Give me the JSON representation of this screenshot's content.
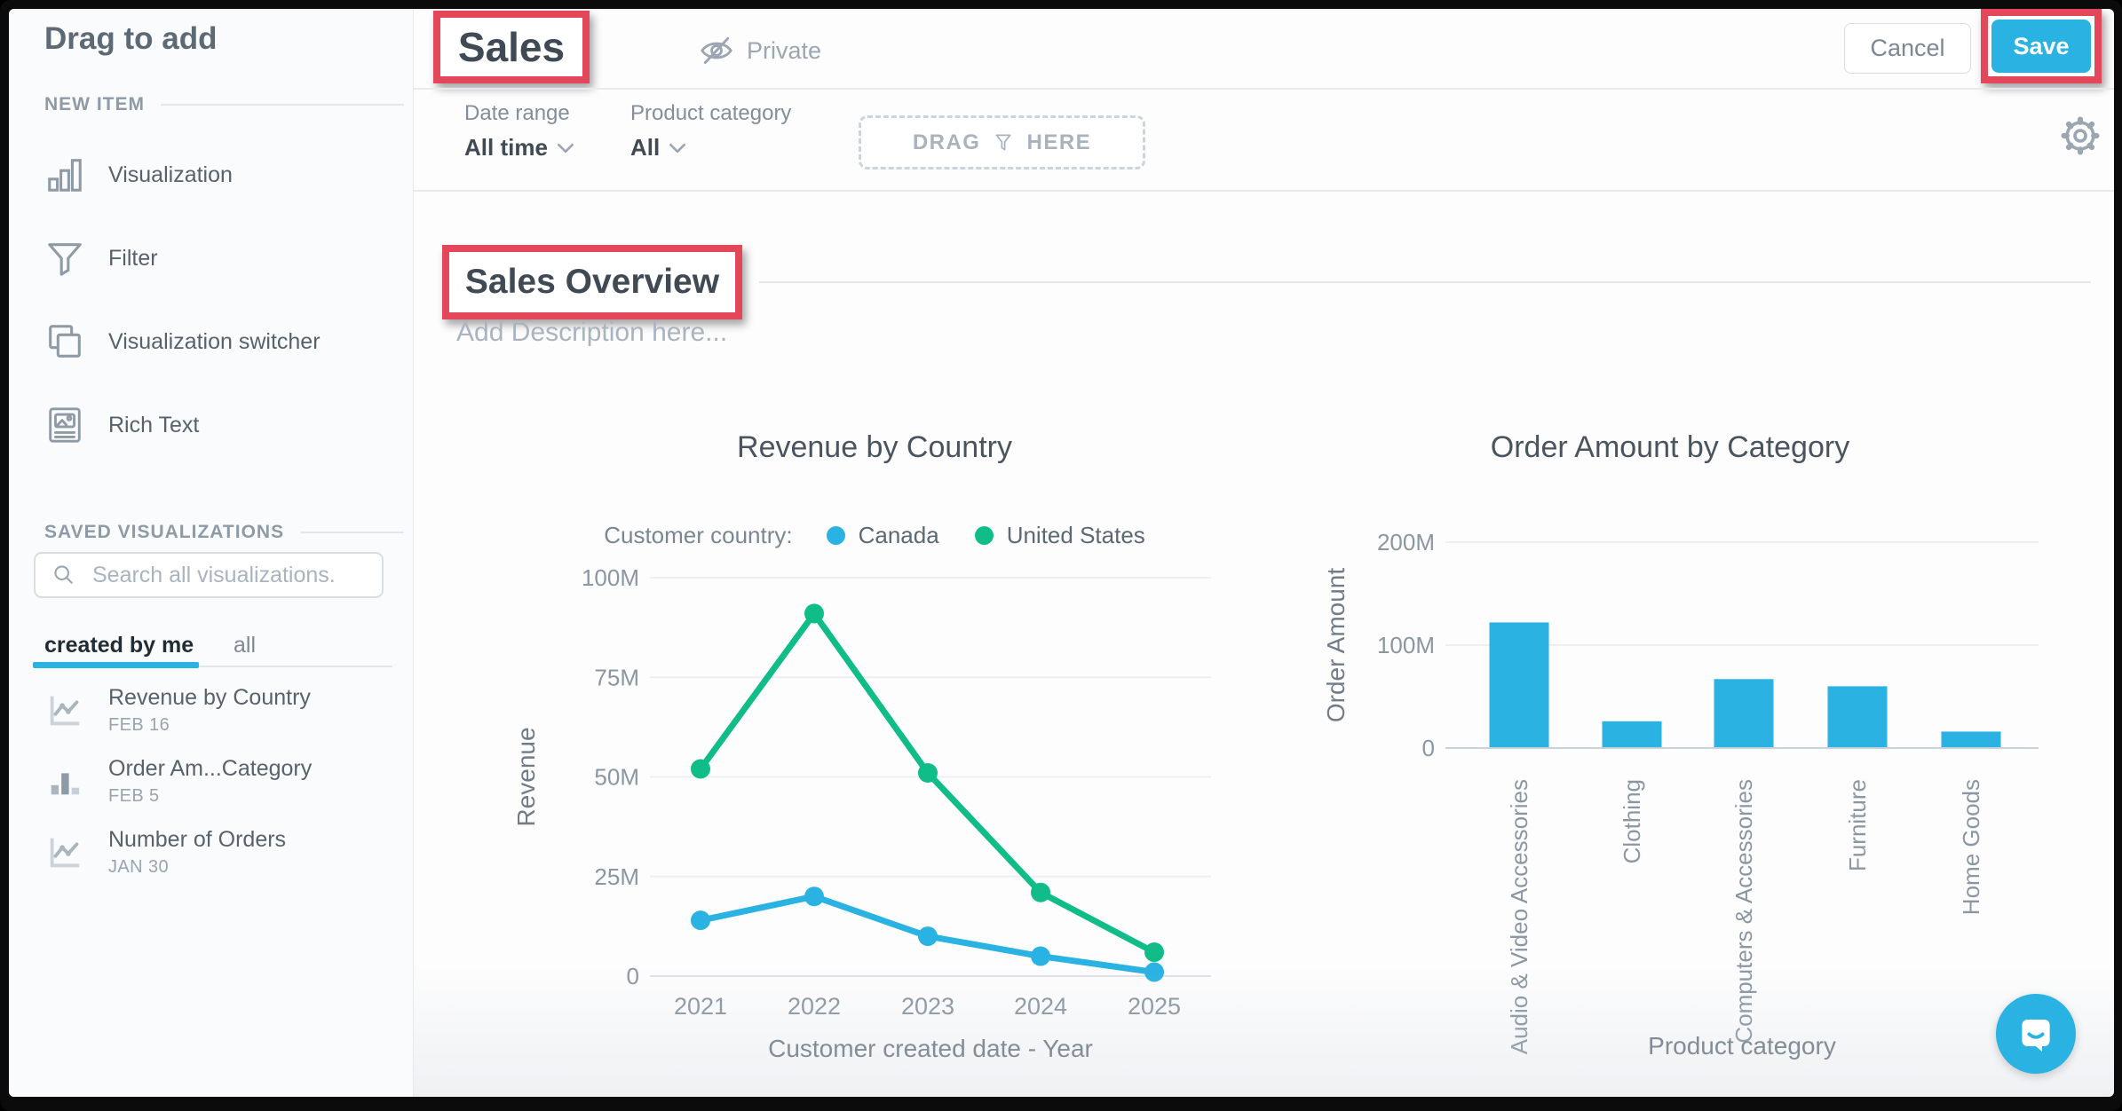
{
  "annotation_color": "#e4465a",
  "accent": "#29b2e2",
  "sidebar": {
    "title": "Drag to add",
    "sections": {
      "new_item": "NEW ITEM",
      "saved": "SAVED VISUALIZATIONS"
    },
    "new_items": [
      {
        "label": "Visualization",
        "icon": "bar-chart-icon"
      },
      {
        "label": "Filter",
        "icon": "funnel-icon"
      },
      {
        "label": "Visualization switcher",
        "icon": "layers-icon"
      },
      {
        "label": "Rich Text",
        "icon": "rich-text-icon"
      }
    ],
    "search": {
      "placeholder": "Search all visualizations."
    },
    "tabs": [
      {
        "label": "created by me",
        "active": true
      },
      {
        "label": "all",
        "active": false
      }
    ],
    "saved_visualizations": [
      {
        "title": "Revenue by Country",
        "date": "FEB 16",
        "icon": "line-chart-icon"
      },
      {
        "title": "Order Am...Category",
        "date": "FEB 5",
        "icon": "bar-chart-icon"
      },
      {
        "title": "Number of Orders",
        "date": "JAN 30",
        "icon": "line-chart-icon"
      }
    ]
  },
  "header": {
    "title": "Sales",
    "privacy_label": "Private",
    "cancel_label": "Cancel",
    "save_label": "Save"
  },
  "filter_bar": {
    "filters": [
      {
        "label": "Date range",
        "value": "All time"
      },
      {
        "label": "Product category",
        "value": "All"
      }
    ],
    "drop_zone": {
      "prefix": "DRAG",
      "suffix": "HERE"
    }
  },
  "section": {
    "title": "Sales Overview",
    "description_placeholder": "Add Description here..."
  },
  "chart_data": [
    {
      "type": "line",
      "title": "Revenue by Country",
      "legend_label": "Customer country:",
      "legend_position": "top",
      "grid": true,
      "x": [
        2021,
        2022,
        2023,
        2024,
        2025
      ],
      "series": [
        {
          "name": "Canada",
          "color": "#29b2e2",
          "values": [
            14,
            20,
            10,
            5,
            1
          ]
        },
        {
          "name": "United States",
          "color": "#10bd89",
          "values": [
            52,
            91,
            51,
            21,
            6
          ]
        }
      ],
      "unit": "M",
      "xlabel": "Customer created date - Year",
      "ylabel": "Revenue",
      "yticks": [
        0,
        25,
        50,
        75,
        100
      ],
      "ylim": [
        0,
        100
      ]
    },
    {
      "type": "bar",
      "title": "Order Amount by Category",
      "grid": true,
      "categories": [
        "Audio & Video Accessories",
        "Clothing",
        "Computers & Accessories",
        "Furniture",
        "Home Goods"
      ],
      "values": [
        122,
        26,
        67,
        60,
        16
      ],
      "bar_color": "#29b2e2",
      "unit": "M",
      "xlabel": "Product category",
      "ylabel": "Order Amount",
      "yticks": [
        0,
        100,
        200
      ],
      "ylim": [
        0,
        200
      ]
    }
  ]
}
